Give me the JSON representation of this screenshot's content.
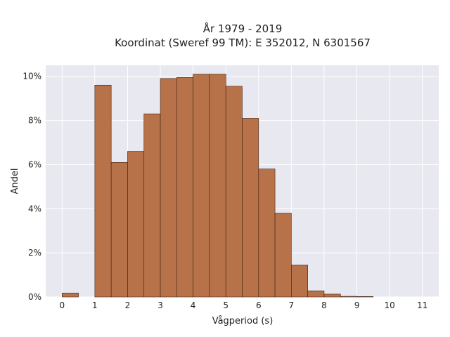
{
  "chart_data": {
    "type": "bar",
    "title": "År 1979 - 2019",
    "subtitle": "Koordinat (Sweref 99 TM): E 352012, N 6301567",
    "xlabel": "Vågperiod (s)",
    "ylabel": "Andel",
    "bin_width": 0.5,
    "bins": [
      {
        "x0": 0.0,
        "value": 0.18
      },
      {
        "x0": 1.0,
        "value": 9.6
      },
      {
        "x0": 1.5,
        "value": 6.1
      },
      {
        "x0": 2.0,
        "value": 6.6
      },
      {
        "x0": 2.5,
        "value": 8.3
      },
      {
        "x0": 3.0,
        "value": 9.9
      },
      {
        "x0": 3.5,
        "value": 9.95
      },
      {
        "x0": 4.0,
        "value": 10.1
      },
      {
        "x0": 4.5,
        "value": 10.1
      },
      {
        "x0": 5.0,
        "value": 9.55
      },
      {
        "x0": 5.5,
        "value": 8.1
      },
      {
        "x0": 6.0,
        "value": 5.8
      },
      {
        "x0": 6.5,
        "value": 3.8
      },
      {
        "x0": 7.0,
        "value": 1.45
      },
      {
        "x0": 7.5,
        "value": 0.28
      },
      {
        "x0": 8.0,
        "value": 0.13
      },
      {
        "x0": 8.5,
        "value": 0.03
      },
      {
        "x0": 9.0,
        "value": 0.02
      }
    ],
    "xlim": [
      -0.5,
      11.5
    ],
    "ylim": [
      0,
      10.5
    ],
    "x_ticks": [
      0,
      1,
      2,
      3,
      4,
      5,
      6,
      7,
      8,
      9,
      10,
      11
    ],
    "y_ticks": [
      0,
      2,
      4,
      6,
      8,
      10
    ],
    "y_tick_labels": [
      "0%",
      "2%",
      "4%",
      "6%",
      "8%",
      "10%"
    ],
    "grid": true,
    "colors": {
      "bar_fill": "#b7724a",
      "bar_stroke": "#3d2414",
      "plot_bg": "#e8e8f1",
      "grid": "#ffffff"
    }
  }
}
